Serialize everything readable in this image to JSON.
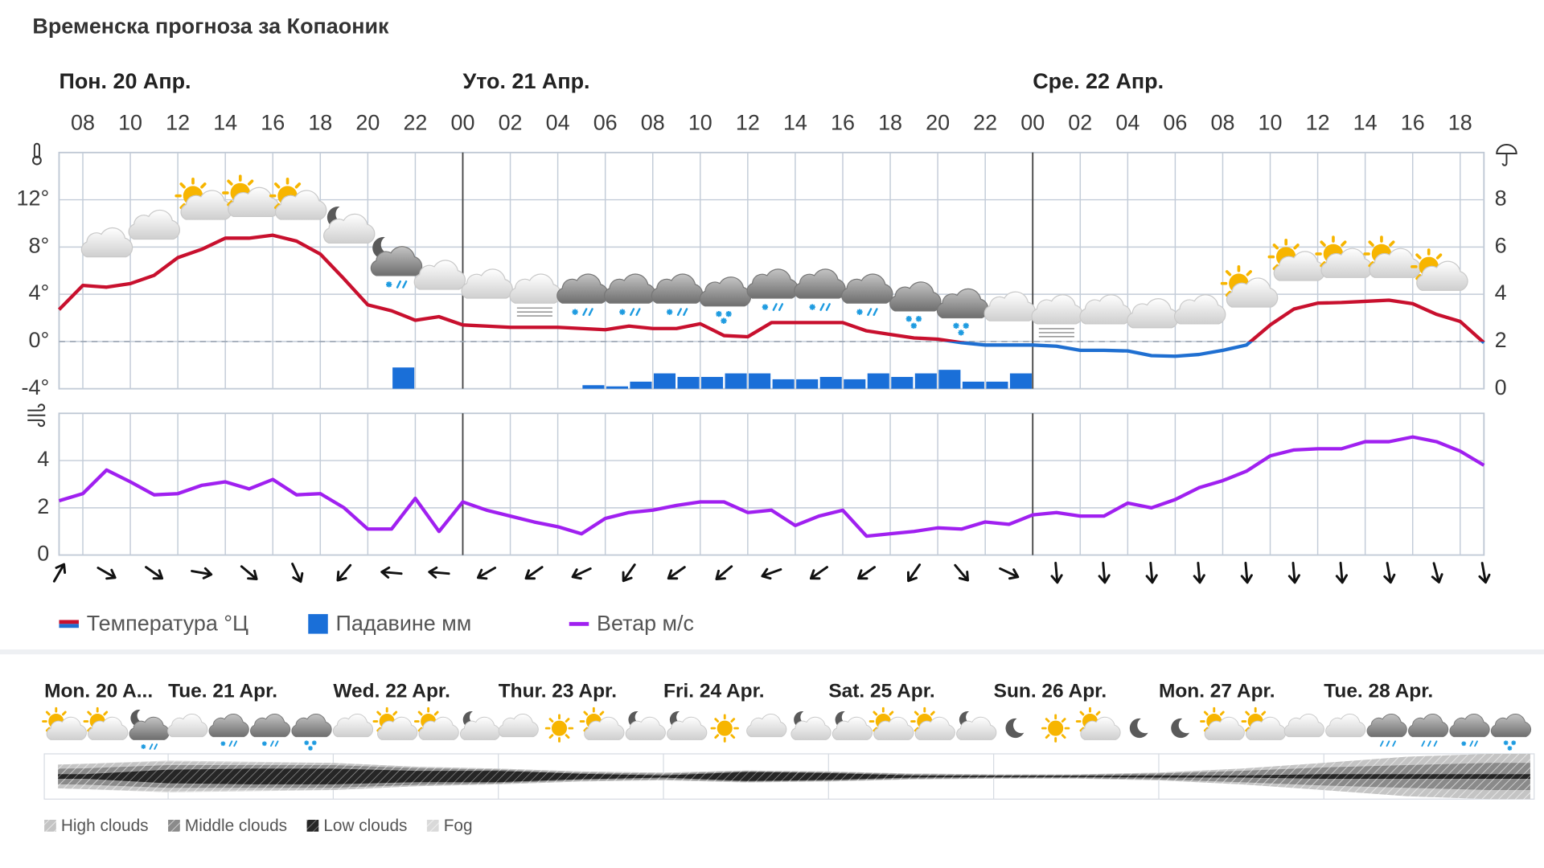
{
  "title": "Временска прогноза за Копаоник",
  "chart_data": [
    {
      "type": "combo",
      "xlim": [
        7,
        67
      ],
      "xticks": [
        {
          "value": 8,
          "label": "08"
        },
        10,
        12,
        14,
        16,
        18,
        20,
        22,
        {
          "value": 24,
          "label": "00"
        },
        {
          "value": 26,
          "label": "02"
        },
        {
          "value": 28,
          "label": "04"
        },
        {
          "value": 30,
          "label": "06"
        },
        {
          "value": 32,
          "label": "08"
        },
        {
          "value": 34,
          "label": "10"
        },
        {
          "value": 36,
          "label": "12"
        },
        {
          "value": 38,
          "label": "14"
        },
        {
          "value": 40,
          "label": "16"
        },
        {
          "value": 42,
          "label": "18"
        },
        {
          "value": 44,
          "label": "20"
        },
        {
          "value": 46,
          "label": "22"
        },
        {
          "value": 48,
          "label": "00"
        },
        {
          "value": 50,
          "label": "02"
        },
        {
          "value": 52,
          "label": "04"
        },
        {
          "value": 54,
          "label": "06"
        },
        {
          "value": 56,
          "label": "08"
        },
        {
          "value": 58,
          "label": "10"
        },
        {
          "value": 60,
          "label": "12"
        },
        {
          "value": 62,
          "label": "14"
        },
        {
          "value": 64,
          "label": "16"
        },
        {
          "value": 66,
          "label": "18"
        }
      ],
      "day_markers": [
        {
          "value": 7,
          "label": "Пон. 20 Апр."
        },
        {
          "value": 24,
          "label": "Уто. 21 Апр."
        },
        {
          "value": 48,
          "label": "Сре. 22 Апр."
        }
      ],
      "ylim": [
        -4,
        16
      ],
      "yticks": [
        {
          "value": -4,
          "label": "-4°"
        },
        {
          "value": 0,
          "label": "0°"
        },
        {
          "value": 4,
          "label": "4°"
        },
        {
          "value": 8,
          "label": "8°"
        },
        {
          "value": 12,
          "label": "12°"
        }
      ],
      "y2lim": [
        0,
        10
      ],
      "y2ticks": [
        0,
        2,
        4,
        6,
        8
      ],
      "grid": true,
      "series": [
        {
          "name": "Температура °Ц",
          "type": "line",
          "color": "#c8102e",
          "negative_color": "#1f6fd1",
          "x": [
            7,
            8,
            9,
            10,
            11,
            12,
            13,
            14,
            15,
            16,
            17,
            18,
            19,
            20,
            21,
            22,
            23,
            24,
            25,
            26,
            27,
            28,
            29,
            30,
            31,
            32,
            33,
            34,
            35,
            36,
            37,
            38,
            39,
            40,
            41,
            42,
            43,
            44,
            45,
            46,
            47,
            48,
            49,
            50,
            51,
            52,
            53,
            54,
            55,
            56,
            57,
            58,
            59,
            60,
            61,
            62,
            63,
            64,
            65,
            66,
            67
          ],
          "values": [
            2.7,
            4.75,
            4.6,
            4.9,
            5.6,
            7.1,
            7.8,
            8.75,
            8.75,
            9.0,
            8.5,
            7.4,
            5.3,
            3.1,
            2.6,
            1.8,
            2.1,
            1.4,
            1.3,
            1.2,
            1.2,
            1.2,
            1.1,
            1.0,
            1.3,
            1.1,
            1.1,
            1.5,
            0.5,
            0.4,
            1.6,
            1.6,
            1.6,
            1.6,
            0.9,
            0.6,
            0.3,
            0.2,
            -0.1,
            -0.3,
            -0.3,
            -0.3,
            -0.4,
            -0.75,
            -0.75,
            -0.8,
            -1.2,
            -1.25,
            -1.1,
            -0.75,
            -0.3,
            1.4,
            2.75,
            3.25,
            3.3,
            3.4,
            3.5,
            3.2,
            2.3,
            1.7,
            -0.1
          ]
        },
        {
          "name": "Падавине мм",
          "type": "bar",
          "axis": "y2",
          "color": "#1a6fd8",
          "x": [
            21,
            29,
            30,
            31,
            32,
            33,
            34,
            35,
            36,
            37,
            38,
            39,
            40,
            41,
            42,
            43,
            44,
            45,
            46,
            47
          ],
          "values": [
            0.9,
            0.15,
            0.1,
            0.3,
            0.65,
            0.5,
            0.5,
            0.65,
            0.65,
            0.4,
            0.4,
            0.5,
            0.4,
            0.65,
            0.5,
            0.65,
            0.8,
            0.3,
            0.3,
            0.65
          ]
        }
      ]
    },
    {
      "type": "line",
      "xlim": [
        7,
        67
      ],
      "ylim": [
        0,
        6
      ],
      "yticks": [
        0,
        2,
        4
      ],
      "grid": true,
      "series": [
        {
          "name": "Ветар м/с",
          "color": "#a020f0",
          "x": [
            7,
            8,
            9,
            10,
            11,
            12,
            13,
            14,
            15,
            16,
            17,
            18,
            19,
            20,
            21,
            22,
            23,
            24,
            25,
            26,
            27,
            28,
            29,
            30,
            31,
            32,
            33,
            34,
            35,
            36,
            37,
            38,
            39,
            40,
            41,
            42,
            43,
            44,
            45,
            46,
            47,
            48,
            49,
            50,
            51,
            52,
            53,
            54,
            55,
            56,
            57,
            58,
            59,
            60,
            61,
            62,
            63,
            64,
            65,
            66,
            67
          ],
          "values": [
            2.3,
            2.6,
            3.6,
            3.1,
            2.55,
            2.6,
            2.95,
            3.1,
            2.8,
            3.2,
            2.55,
            2.6,
            2.0,
            1.1,
            1.1,
            2.4,
            1.0,
            2.25,
            1.9,
            1.65,
            1.4,
            1.2,
            0.9,
            1.55,
            1.8,
            1.9,
            2.1,
            2.25,
            2.25,
            1.8,
            1.9,
            1.25,
            1.65,
            1.9,
            0.8,
            0.9,
            1.0,
            1.15,
            1.1,
            1.4,
            1.3,
            1.7,
            1.8,
            1.65,
            1.65,
            2.2,
            2.0,
            2.35,
            2.85,
            3.15,
            3.55,
            4.2,
            4.45,
            4.5,
            4.5,
            4.8,
            4.8,
            5.0,
            4.8,
            4.4,
            3.8
          ]
        }
      ],
      "wind_direction": {
        "x": [
          7,
          9,
          11,
          13,
          15,
          17,
          19,
          21,
          23,
          25,
          27,
          29,
          31,
          33,
          35,
          37,
          39,
          41,
          43,
          45,
          47,
          49,
          51,
          53,
          55,
          57,
          59,
          61,
          63,
          65,
          67
        ],
        "values": [
          30,
          120,
          125,
          100,
          130,
          155,
          220,
          275,
          275,
          240,
          235,
          245,
          215,
          235,
          230,
          250,
          235,
          235,
          215,
          140,
          115,
          175,
          175,
          175,
          175,
          175,
          175,
          175,
          170,
          165,
          170
        ]
      }
    },
    {
      "type": "area",
      "xlim": [
        6,
        224
      ],
      "day_markers": [
        {
          "value": 6,
          "label": "Mon. 20 A..."
        },
        {
          "value": 24,
          "label": "Tue. 21 Apr."
        },
        {
          "value": 48,
          "label": "Wed. 22 Apr."
        },
        {
          "value": 72,
          "label": "Thur. 23 Apr."
        },
        {
          "value": 96,
          "label": "Fri. 24 Apr."
        },
        {
          "value": 120,
          "label": "Sat. 25 Apr."
        },
        {
          "value": 144,
          "label": "Sun. 26 Apr."
        },
        {
          "value": 168,
          "label": "Mon. 27 Apr."
        },
        {
          "value": 192,
          "label": "Tue. 28 Apr."
        }
      ],
      "series": [
        {
          "name": "High clouds",
          "color": "#c4c4c4",
          "x": [
            8,
            12,
            24,
            36,
            48,
            60,
            72,
            84,
            96,
            108,
            120,
            132,
            144,
            156,
            168,
            180,
            192,
            204,
            216,
            222
          ],
          "values": [
            17,
            20,
            15,
            10,
            10,
            6,
            5,
            5,
            5,
            3,
            3,
            3,
            2,
            2,
            4,
            10,
            20,
            37,
            40,
            40
          ]
        },
        {
          "name": "Middle clouds",
          "color": "#8a8a8a",
          "x": [
            8,
            12,
            24,
            36,
            48,
            60,
            72,
            84,
            96,
            108,
            120,
            132,
            144,
            156,
            168,
            180,
            192,
            204,
            216,
            222
          ],
          "values": [
            25,
            26,
            20,
            15,
            15,
            12,
            5,
            5,
            7,
            3,
            4,
            5,
            4,
            4,
            8,
            20,
            30,
            40,
            50,
            50
          ]
        },
        {
          "name": "Low clouds",
          "color": "#262626",
          "x": [
            8,
            12,
            24,
            36,
            48,
            60,
            72,
            84,
            96,
            108,
            120,
            132,
            144,
            156,
            168,
            180,
            192,
            204,
            216,
            222
          ],
          "values": [
            10,
            10,
            30,
            35,
            35,
            25,
            25,
            12,
            5,
            20,
            15,
            5,
            3,
            3,
            5,
            5,
            10,
            10,
            10,
            10
          ]
        },
        {
          "name": "Fog",
          "color": "#d9d9d9",
          "x": [
            8,
            12,
            24,
            36,
            48,
            60,
            72,
            84,
            96,
            108,
            120,
            132,
            144,
            156,
            168,
            180,
            192,
            204,
            216,
            222
          ],
          "values": [
            0,
            0,
            5,
            5,
            0,
            0,
            0,
            0,
            0,
            0,
            0,
            0,
            0,
            0,
            0,
            0,
            0,
            0,
            0,
            0
          ]
        }
      ]
    }
  ]
}
